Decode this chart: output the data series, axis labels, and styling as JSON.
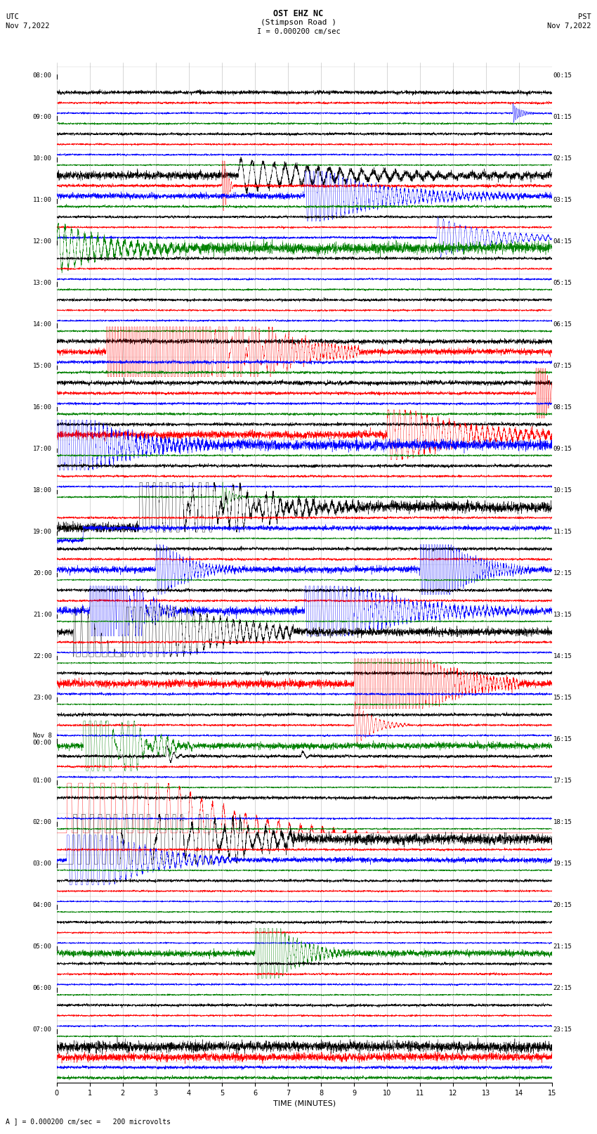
{
  "title_line1": "OST EHZ NC",
  "title_line2": "(Stimpson Road )",
  "scale_label": "I = 0.000200 cm/sec",
  "xlabel": "TIME (MINUTES)",
  "footer_label": "A ] = 0.000200 cm/sec =   200 microvolts",
  "xlim": [
    0,
    15
  ],
  "xticks": [
    0,
    1,
    2,
    3,
    4,
    5,
    6,
    7,
    8,
    9,
    10,
    11,
    12,
    13,
    14,
    15
  ],
  "num_hours": 24,
  "traces_per_hour": 4,
  "trace_colors_cycle": [
    "black",
    "red",
    "blue",
    "green"
  ],
  "utc_times": [
    "08:00",
    "09:00",
    "10:00",
    "11:00",
    "12:00",
    "13:00",
    "14:00",
    "15:00",
    "16:00",
    "17:00",
    "18:00",
    "19:00",
    "20:00",
    "21:00",
    "22:00",
    "23:00",
    "Nov 8\n00:00",
    "01:00",
    "02:00",
    "03:00",
    "04:00",
    "05:00",
    "06:00",
    "07:00"
  ],
  "pst_times": [
    "00:15",
    "01:15",
    "02:15",
    "03:15",
    "04:15",
    "05:15",
    "06:15",
    "07:15",
    "08:15",
    "09:15",
    "10:15",
    "11:15",
    "12:15",
    "13:15",
    "14:15",
    "15:15",
    "16:15",
    "17:15",
    "18:15",
    "19:15",
    "20:15",
    "21:15",
    "22:15",
    "23:15"
  ],
  "bg_color": "#ffffff",
  "grid_color": "#888888",
  "fig_width": 8.5,
  "fig_height": 16.13,
  "dpi": 100
}
